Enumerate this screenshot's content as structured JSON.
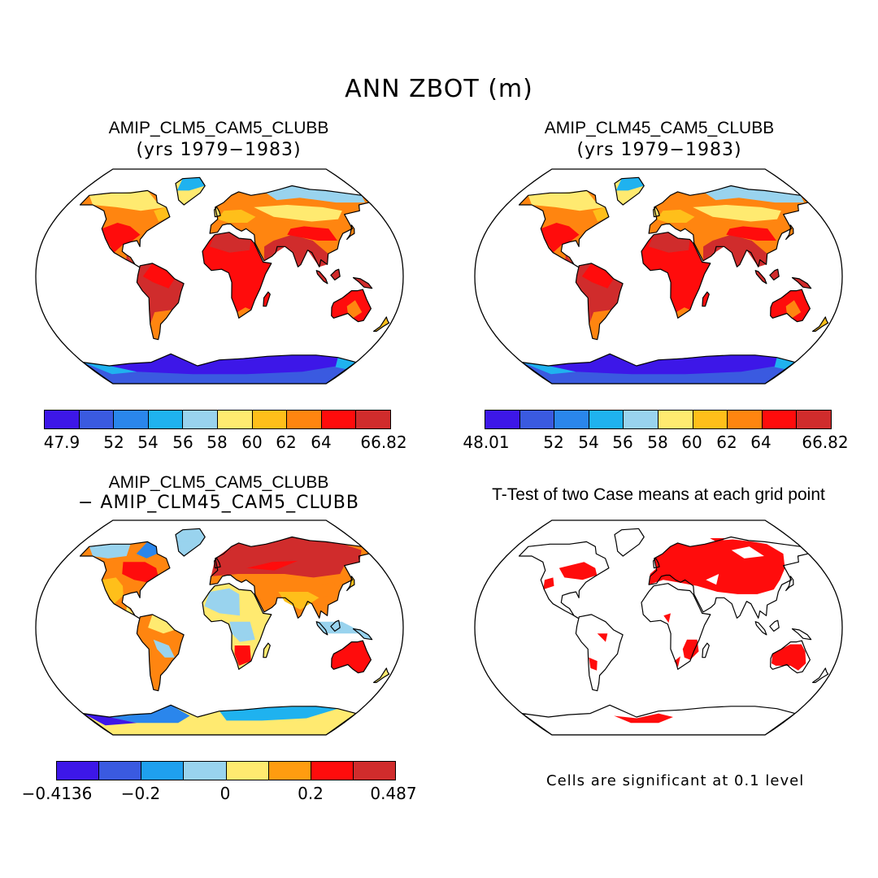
{
  "figure": {
    "title": "ANN ZBOT (m)"
  },
  "colors": {
    "c1": "#3d17e8",
    "c2": "#3a5ae0",
    "c3": "#2a86ec",
    "c4": "#1fb2ef",
    "c5": "#99d3ee",
    "c6": "#ffea70",
    "c7": "#ffbf1a",
    "c8": "#ff8510",
    "c9": "#ff0c0c",
    "c10": "#d02c2c",
    "ocean": "#ffffff"
  },
  "panels": [
    {
      "id": "p1",
      "title": "AMIP_CLM5_CAM5_CLUBB",
      "subtitle": "(yrs 1979−1983)",
      "colorbar": {
        "colors": [
          "#3d17e8",
          "#3a5ae0",
          "#2a86ec",
          "#1fb2ef",
          "#99d3ee",
          "#ffea70",
          "#ffbf1a",
          "#ff8510",
          "#ff0c0c",
          "#d02c2c"
        ],
        "min_label": "47.9",
        "labels": [
          "52",
          "54",
          "56",
          "58",
          "60",
          "62",
          "64"
        ],
        "max_label": "66.82"
      }
    },
    {
      "id": "p2",
      "title": "AMIP_CLM45_CAM5_CLUBB",
      "subtitle": "(yrs 1979−1983)",
      "colorbar": {
        "colors": [
          "#3d17e8",
          "#3a5ae0",
          "#2a86ec",
          "#1fb2ef",
          "#99d3ee",
          "#ffea70",
          "#ffbf1a",
          "#ff8510",
          "#ff0c0c",
          "#d02c2c"
        ],
        "min_label": "48.01",
        "labels": [
          "52",
          "54",
          "56",
          "58",
          "60",
          "62",
          "64"
        ],
        "max_label": "66.82"
      }
    },
    {
      "id": "p3",
      "title": "AMIP_CLM5_CAM5_CLUBB",
      "subtitle": "− AMIP_CLM45_CAM5_CLUBB",
      "colorbar": {
        "colors": [
          "#3d17e8",
          "#3a5ae0",
          "#1fa0ef",
          "#99d3ee",
          "#ffea70",
          "#ff9c10",
          "#ff0c0c",
          "#d02c2c"
        ],
        "min_label": "−0.4136",
        "labels": [
          "−0.2",
          "0",
          "0.2"
        ],
        "max_label": "0.487"
      }
    },
    {
      "id": "p4",
      "title": "T-Test of two Case means at each grid point",
      "note": "Cells are significant at 0.1 level",
      "significant_color": "#ff0c0c"
    }
  ]
}
